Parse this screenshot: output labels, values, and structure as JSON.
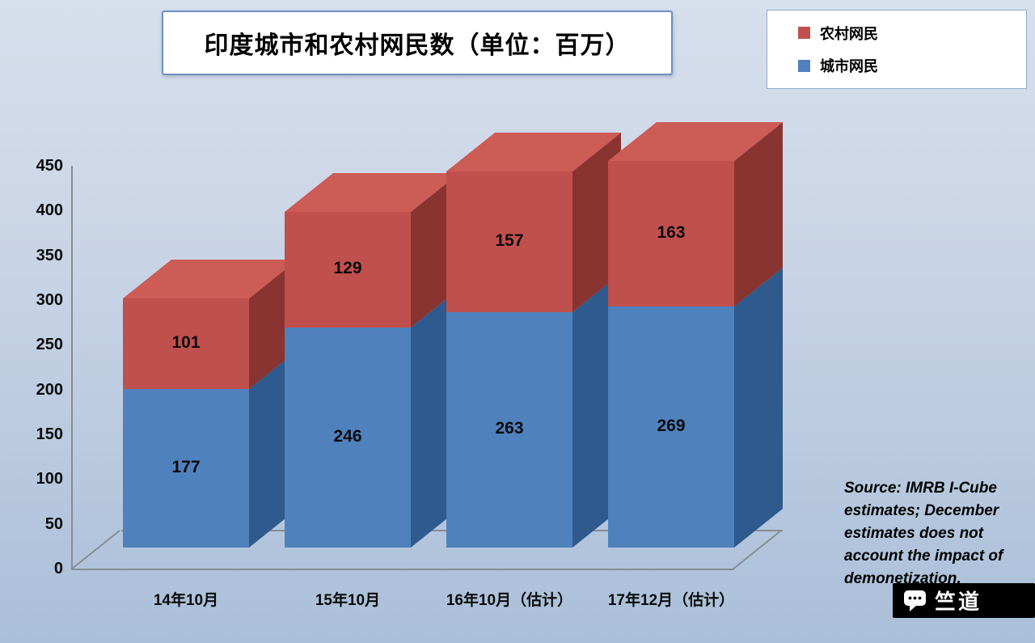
{
  "title": "印度城市和农村网民数（单位：百万）",
  "legend": {
    "items": [
      {
        "label": "农村网民",
        "color": "#c0504d"
      },
      {
        "label": "城市网民",
        "color": "#4f81bd"
      }
    ]
  },
  "chart_data": {
    "type": "bar",
    "style": "3d-stacked",
    "stacked": true,
    "title": "印度城市和农村网民数（单位：百万）",
    "categories": [
      "14年10月",
      "15年10月",
      "16年10月（估计）",
      "17年12月（估计）"
    ],
    "series": [
      {
        "name": "城市网民",
        "values": [
          177,
          246,
          263,
          269
        ],
        "color": "#4f81bd",
        "side_color": "#2e5a8d"
      },
      {
        "name": "农村网民",
        "values": [
          101,
          129,
          157,
          163
        ],
        "color": "#c0504d",
        "side_color": "#8a3431",
        "top_color": "#cd5b56"
      }
    ],
    "totals": [
      278,
      375,
      420,
      432
    ],
    "xlabel": "",
    "ylabel": "",
    "ylim": [
      0,
      450
    ],
    "ytick_step": 50,
    "yticks": [
      0,
      50,
      100,
      150,
      200,
      250,
      300,
      350,
      400,
      450
    ],
    "grid": false,
    "legend_position": "top-right"
  },
  "source_note": "Source: IMRB I-Cube estimates; December estimates does not account the impact of demonetization.",
  "watermark": {
    "label": "竺道"
  }
}
